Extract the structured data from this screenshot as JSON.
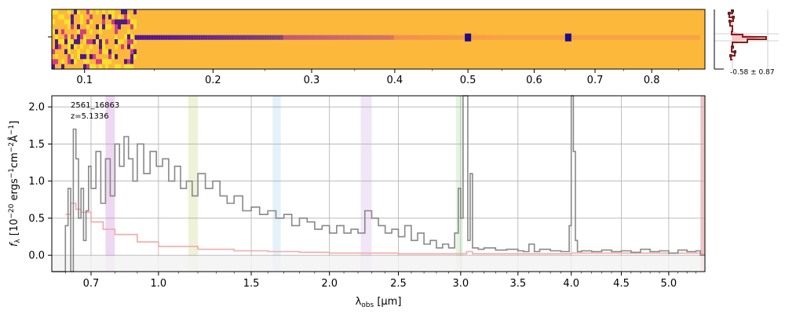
{
  "chart_data": [
    {
      "type": "heatmap",
      "name": "2d-spectrum",
      "colormap": "plasma",
      "xlim": [
        0.08,
        0.9
      ],
      "xticks": [
        0.1,
        0.2,
        0.3,
        0.4,
        0.5,
        0.6,
        0.7,
        0.8
      ],
      "xtick_labels": [
        "0.1",
        "0.2",
        "0.3",
        "0.4",
        "0.5",
        "0.6",
        "0.7",
        "0.8"
      ],
      "bright_features_x": [
        0.5,
        0.655
      ],
      "trace_fade_x": 0.55
    },
    {
      "type": "line",
      "name": "spatial-profile",
      "label": "-0.58 ± 0.87",
      "colors": {
        "profile": "#8b1a1a",
        "fill": "#f4b8b8",
        "dots": "#333333"
      }
    },
    {
      "type": "line",
      "title": "",
      "annotation_id": "2561_16863",
      "annotation_z": "z=5.1336",
      "xlabel": "λ_obs [μm]",
      "xlabel_parts": {
        "lambda": "λ",
        "sub": "obs",
        "unit": " [μm]"
      },
      "ylabel_parts": {
        "f": "f",
        "sub": "λ",
        "mid": " [10",
        "exp1": "−20",
        "mid2": " ergs",
        "exp2": "−1",
        "mid3": "cm",
        "exp3": "−2",
        "mid4": "Å",
        "exp4": "−1",
        "end": "]"
      },
      "xlim": [
        0.55,
        5.4
      ],
      "ylim": [
        -0.22,
        2.15
      ],
      "x_scale": "sqrt",
      "xticks": [
        0.7,
        1.0,
        1.5,
        2.0,
        2.5,
        3.0,
        3.5,
        4.0,
        4.5,
        5.0
      ],
      "xtick_labels": [
        "0.7",
        "1.0",
        "1.5",
        "2.0",
        "2.5",
        "3.0",
        "3.5",
        "4.0",
        "4.5",
        "5.0"
      ],
      "yticks": [
        0.0,
        0.5,
        1.0,
        1.5,
        2.0
      ],
      "ytick_labels": [
        "0.0",
        "0.5",
        "1.0",
        "1.5",
        "2.0"
      ],
      "grid": true,
      "shaded_bands": [
        {
          "x": [
            0.76,
            0.8
          ],
          "color": "#e7c6ec"
        },
        {
          "x": [
            1.15,
            1.2
          ],
          "color": "#e6ecc9"
        },
        {
          "x": [
            1.63,
            1.68
          ],
          "color": "#d7ebf8"
        },
        {
          "x": [
            2.22,
            2.3
          ],
          "color": "#eadbf4"
        },
        {
          "x": [
            2.96,
            3.02
          ],
          "color": "#d8efd6"
        },
        {
          "x": [
            5.35,
            5.4
          ],
          "color": "#e6a9ad"
        }
      ],
      "series": [
        {
          "color": "#888888",
          "x": [
            0.55,
            0.58,
            0.6,
            0.61,
            0.62,
            0.63,
            0.64,
            0.65,
            0.66,
            0.67,
            0.68,
            0.69,
            0.7,
            0.72,
            0.74,
            0.76,
            0.78,
            0.8,
            0.82,
            0.84,
            0.86,
            0.88,
            0.9,
            0.93,
            0.96,
            0.99,
            1.02,
            1.05,
            1.08,
            1.11,
            1.14,
            1.17,
            1.2,
            1.24,
            1.28,
            1.32,
            1.36,
            1.4,
            1.45,
            1.5,
            1.55,
            1.6,
            1.65,
            1.7,
            1.75,
            1.8,
            1.85,
            1.9,
            1.95,
            2.0,
            2.05,
            2.1,
            2.15,
            2.2,
            2.25,
            2.3,
            2.35,
            2.4,
            2.45,
            2.5,
            2.55,
            2.6,
            2.65,
            2.7,
            2.75,
            2.8,
            2.85,
            2.9,
            2.95,
            2.98,
            3.0,
            3.02,
            3.04,
            3.06,
            3.08,
            3.1,
            3.15,
            3.2,
            3.3,
            3.4,
            3.5,
            3.55,
            3.6,
            3.65,
            3.7,
            3.8,
            3.9,
            3.98,
            4.0,
            4.02,
            4.04,
            4.06,
            4.1,
            4.2,
            4.3,
            4.4,
            4.5,
            4.6,
            4.7,
            4.8,
            4.9,
            5.0,
            5.1,
            5.2,
            5.3,
            5.35
          ],
          "y": [
            -0.22,
            -0.22,
            0.4,
            0.9,
            -0.22,
            1.7,
            1.3,
            0.5,
            0.9,
            0.2,
            0.6,
            1.2,
            0.9,
            1.4,
            0.7,
            1.3,
            0.8,
            1.5,
            1.2,
            1.6,
            1.3,
            1.0,
            1.5,
            1.1,
            1.4,
            1.2,
            1.3,
            1.0,
            1.2,
            0.9,
            1.0,
            0.8,
            1.1,
            0.9,
            1.0,
            0.8,
            0.7,
            0.8,
            0.6,
            0.65,
            0.55,
            0.6,
            0.5,
            0.55,
            0.4,
            0.5,
            0.45,
            0.35,
            0.4,
            0.3,
            0.4,
            0.3,
            0.35,
            0.3,
            0.6,
            0.5,
            0.4,
            0.3,
            0.35,
            0.25,
            0.4,
            0.2,
            0.3,
            0.15,
            0.2,
            0.1,
            0.15,
            0.1,
            0.3,
            0.9,
            0.5,
            2.15,
            2.15,
            0.2,
            1.1,
            0.1,
            0.08,
            0.1,
            0.07,
            0.08,
            0.06,
            0.05,
            0.15,
            0.05,
            0.08,
            0.06,
            0.05,
            0.4,
            2.15,
            1.4,
            0.2,
            0.05,
            0.06,
            0.05,
            0.07,
            0.05,
            0.06,
            0.04,
            0.08,
            0.05,
            0.06,
            0.03,
            0.07,
            0.05,
            0.06,
            0.0
          ]
        },
        {
          "color": "#f4a9a9",
          "x": [
            0.6,
            0.62,
            0.64,
            0.66,
            0.7,
            0.75,
            0.8,
            0.9,
            1.0,
            1.2,
            1.4,
            1.6,
            1.8,
            2.0,
            2.5,
            3.0,
            3.05,
            3.1,
            3.5,
            4.0,
            4.5,
            5.0,
            5.35
          ],
          "y": [
            0.55,
            0.7,
            0.62,
            0.58,
            0.45,
            0.35,
            0.28,
            0.18,
            0.12,
            0.08,
            0.06,
            0.05,
            0.04,
            0.03,
            0.02,
            0.02,
            0.05,
            0.02,
            0.02,
            0.03,
            0.03,
            0.03,
            0.02
          ]
        }
      ]
    }
  ]
}
